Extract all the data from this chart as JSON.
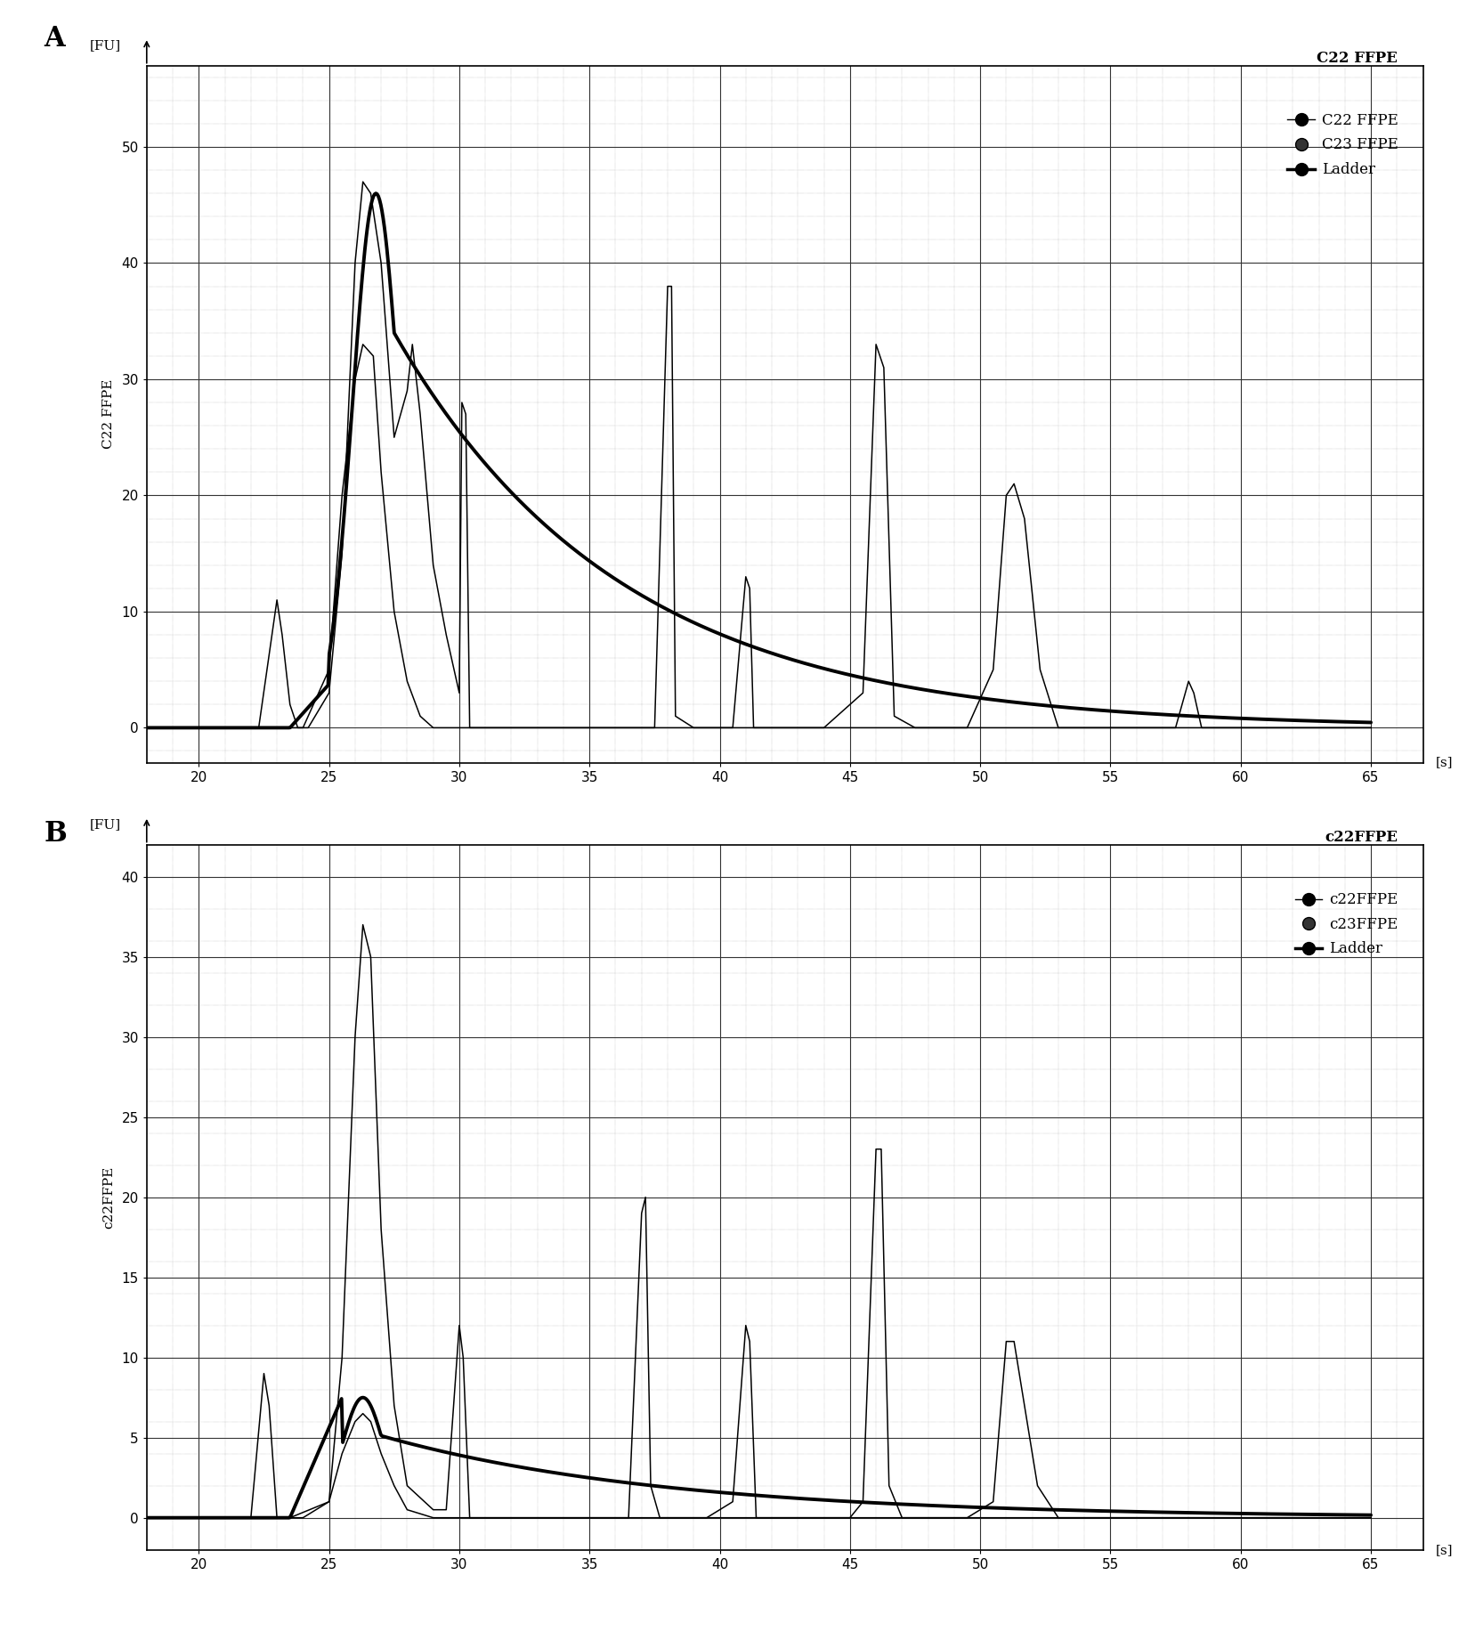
{
  "panel_A": {
    "title": "C22 FFPE",
    "ylabel": "C22 FFPE",
    "xlim": [
      18,
      67
    ],
    "ylim": [
      -3,
      57
    ],
    "xticks": [
      20,
      25,
      30,
      35,
      40,
      45,
      50,
      55,
      60,
      65
    ],
    "yticks": [
      0,
      10,
      20,
      30,
      40,
      50
    ],
    "legend_labels": [
      "C22 FFPE",
      "C23 FFPE",
      "Ladder"
    ]
  },
  "panel_B": {
    "title": "c22FFPE",
    "ylabel": "c22FFPE",
    "xlim": [
      18,
      67
    ],
    "ylim": [
      -2,
      42
    ],
    "xticks": [
      20,
      25,
      30,
      35,
      40,
      45,
      50,
      55,
      60,
      65
    ],
    "yticks": [
      0,
      5,
      10,
      15,
      20,
      25,
      30,
      35,
      40
    ],
    "legend_labels": [
      "c22FFPE",
      "c23FFPE",
      "Ladder"
    ]
  }
}
